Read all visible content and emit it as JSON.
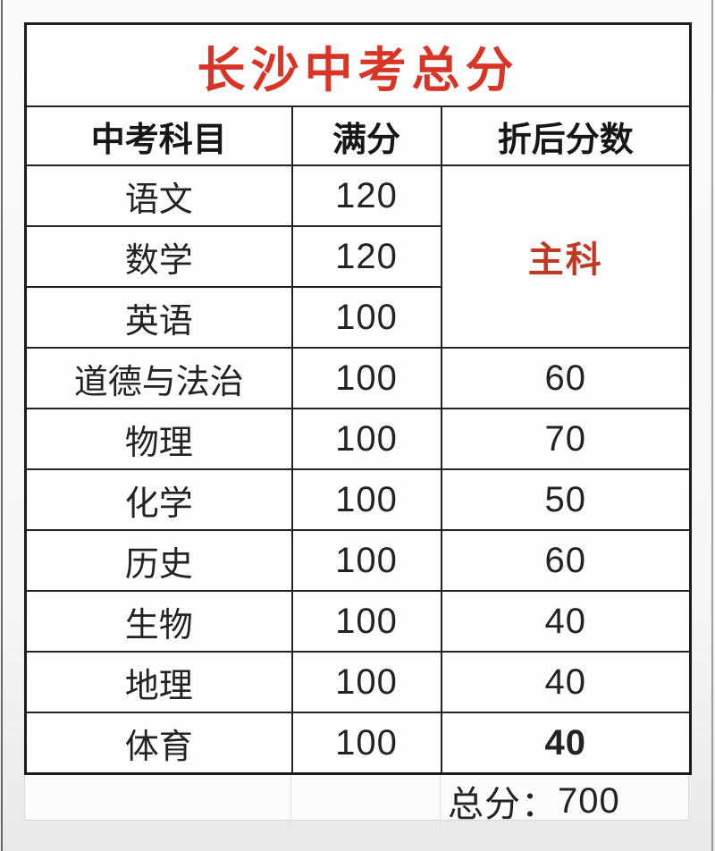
{
  "page": {
    "title": "长沙中考总分"
  },
  "colors": {
    "title-red": "#d93526",
    "subject-red": "#bf3a22",
    "border-black": "#1c1c1c",
    "faint-border": "#d9d9d9"
  },
  "table": {
    "headers": {
      "subject": "中考科目",
      "full_score": "满分",
      "discounted_score": "折后分数"
    },
    "merged_label": "主科",
    "rows": [
      {
        "subject": "语文",
        "full": "120",
        "discounted": ""
      },
      {
        "subject": "数学",
        "full": "120",
        "discounted": ""
      },
      {
        "subject": "英语",
        "full": "100",
        "discounted": ""
      },
      {
        "subject": "道德与法治",
        "full": "100",
        "discounted": "60"
      },
      {
        "subject": "物理",
        "full": "100",
        "discounted": "70"
      },
      {
        "subject": "化学",
        "full": "100",
        "discounted": "50"
      },
      {
        "subject": "历史",
        "full": "100",
        "discounted": "60"
      },
      {
        "subject": "生物",
        "full": "100",
        "discounted": "40"
      },
      {
        "subject": "地理",
        "full": "100",
        "discounted": "40"
      },
      {
        "subject": "体育",
        "full": "100",
        "discounted": "40"
      }
    ],
    "footer": {
      "label": "总分：",
      "value": "700"
    }
  }
}
